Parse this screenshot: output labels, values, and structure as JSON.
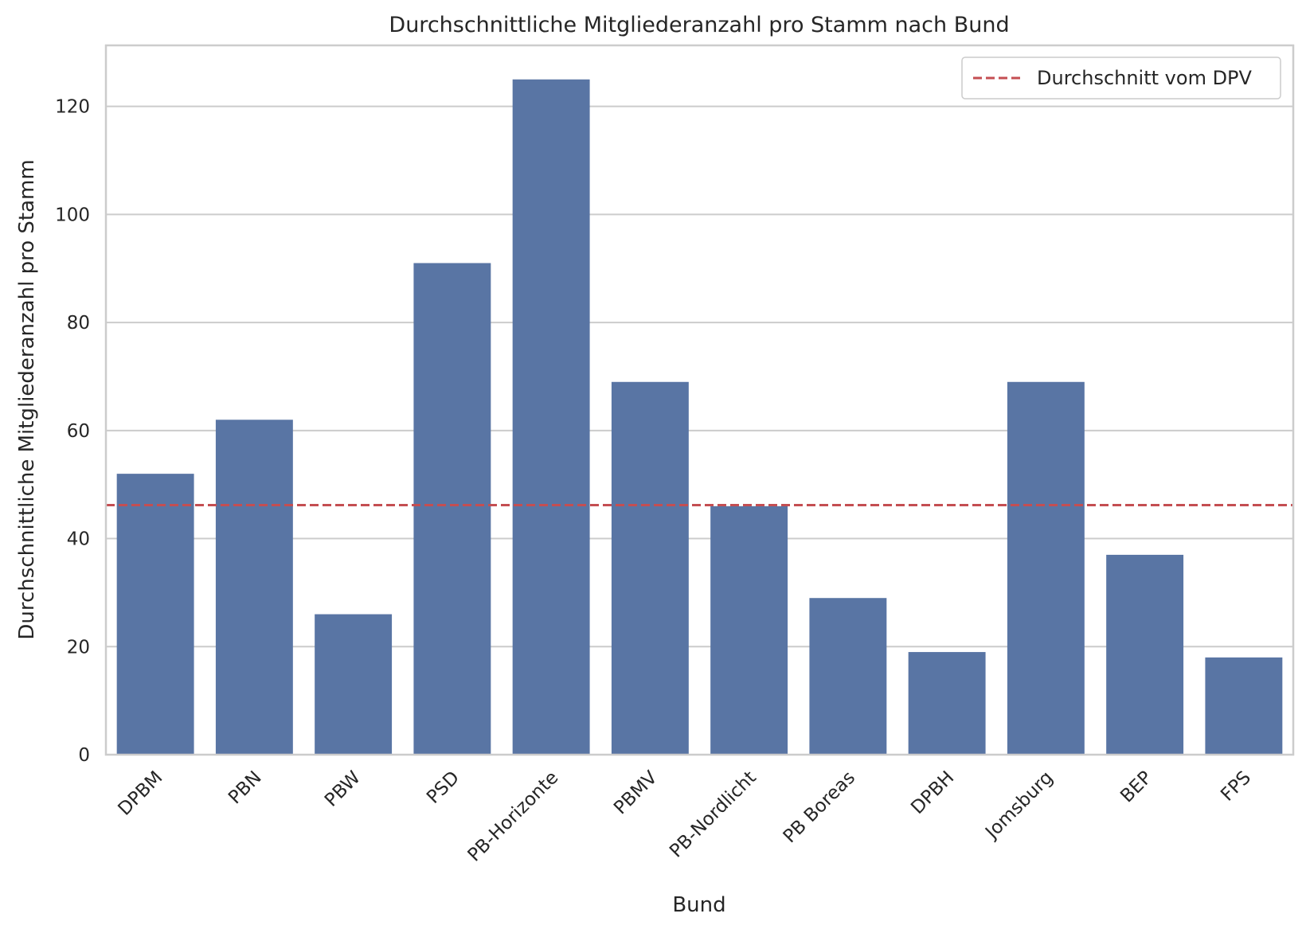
{
  "chart_data": {
    "type": "bar",
    "title": "Durchschnittliche Mitgliederanzahl pro Stamm nach Bund",
    "xlabel": "Bund",
    "ylabel": "Durchschnittliche Mitgliederanzahl pro Stamm",
    "categories": [
      "DPBM",
      "PBN",
      "PBW",
      "PSD",
      "PB-Horizonte",
      "PBMV",
      "PB-Nordlicht",
      "PB Boreas",
      "DPBH",
      "Jomsburg",
      "BEP",
      "FPS"
    ],
    "values": [
      52,
      62,
      26,
      91,
      125,
      69,
      46,
      29,
      19,
      69,
      37,
      18
    ],
    "ylim": [
      0,
      131.3
    ],
    "yticks": [
      0,
      20,
      40,
      60,
      80,
      100,
      120
    ],
    "reference_line": {
      "label": "Durchschnitt vom DPV",
      "value": 46.2,
      "style": "dashed",
      "color": "#c44e52"
    },
    "bar_color": "#5975a4",
    "grid": "horizontal",
    "legend_position": "top-right",
    "xtick_rotation": 45
  }
}
